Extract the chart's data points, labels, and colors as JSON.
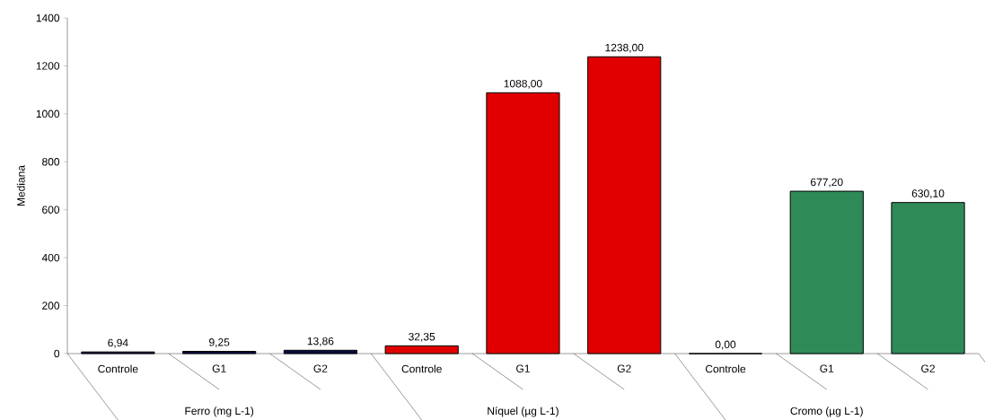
{
  "chart_data": {
    "type": "bar",
    "ylabel": "Mediana",
    "categories": [
      "Controle",
      "G1",
      "G2",
      "Controle",
      "G1",
      "G2",
      "Controle",
      "G1",
      "G2"
    ],
    "values": [
      6.94,
      9.25,
      13.86,
      32.35,
      1088.0,
      1238.0,
      0.0,
      677.2,
      630.1
    ],
    "value_labels": [
      "6,94",
      "9,25",
      "13,86",
      "32,35",
      "1088,00",
      "1238,00",
      "0,00",
      "677,20",
      "630,10"
    ],
    "colors": [
      "#0a0a40",
      "#0a0a40",
      "#0a0a40",
      "#e00000",
      "#e00000",
      "#e00000",
      "#2e8b57",
      "#2e8b57",
      "#2e8b57"
    ],
    "ylim": [
      0,
      1400
    ],
    "yticks": [
      0,
      200,
      400,
      600,
      800,
      1000,
      1200,
      1400
    ],
    "annotations": [
      "Ferro (mg L-1)",
      "Níquel (µg L-1)",
      "Cromo (µg L-1)"
    ]
  }
}
